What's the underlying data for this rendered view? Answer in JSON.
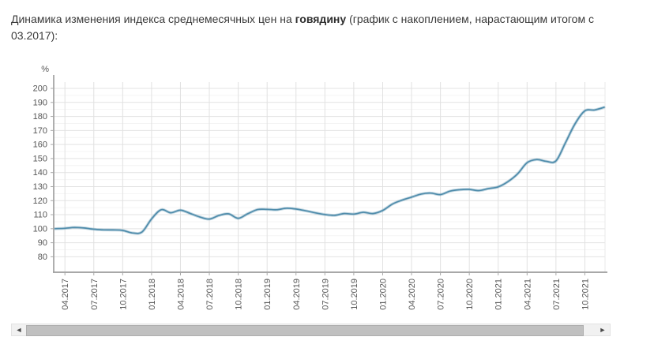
{
  "header": {
    "title_prefix": "Динамика изменения индекса среднемесячных цен на",
    "title_product": "говядину",
    "title_suffix": "(график с накоплением, нарастающим итогом с 03.2017):"
  },
  "chart_data": {
    "type": "line",
    "title": "Динамика изменения индекса среднемесячных цен на говядину (график с накоплением, нарастающим итогом с 03.2017)",
    "ylabel": "%",
    "unit_label": "%",
    "grid": "on",
    "legend": "none",
    "line_color": "#4f8cab",
    "ylim": [
      80,
      200
    ],
    "y_tick_step": 10,
    "x": [
      "03.2017",
      "04.2017",
      "05.2017",
      "06.2017",
      "07.2017",
      "08.2017",
      "09.2017",
      "10.2017",
      "11.2017",
      "12.2017",
      "01.2018",
      "02.2018",
      "03.2018",
      "04.2018",
      "05.2018",
      "06.2018",
      "07.2018",
      "08.2018",
      "09.2018",
      "10.2018",
      "11.2018",
      "12.2018",
      "01.2019",
      "02.2019",
      "03.2019",
      "04.2019",
      "05.2019",
      "06.2019",
      "07.2019",
      "08.2019",
      "09.2019",
      "10.2019",
      "11.2019",
      "12.2019",
      "01.2020",
      "02.2020",
      "03.2020",
      "04.2020",
      "05.2020",
      "06.2020",
      "07.2020",
      "08.2020",
      "09.2020",
      "10.2020",
      "11.2020",
      "12.2020",
      "01.2021",
      "02.2021",
      "03.2021",
      "04.2021",
      "05.2021",
      "06.2021",
      "07.2021",
      "08.2021",
      "09.2021",
      "10.2021",
      "11.2021",
      "12.2021"
    ],
    "values": [
      100.0,
      100.3,
      100.9,
      100.5,
      99.6,
      99.2,
      99.1,
      98.8,
      97.0,
      97.6,
      107.0,
      113.5,
      111.4,
      113.2,
      110.9,
      108.4,
      106.9,
      109.4,
      110.6,
      107.4,
      110.7,
      113.6,
      113.8,
      113.5,
      114.6,
      114.0,
      112.8,
      111.3,
      110.1,
      109.5,
      110.8,
      110.4,
      111.7,
      110.8,
      113.0,
      117.5,
      120.3,
      122.5,
      124.7,
      125.4,
      124.3,
      126.8,
      127.8,
      128.0,
      127.2,
      128.6,
      129.8,
      133.5,
      139.0,
      147.0,
      149.3,
      148.0,
      148.3,
      161.5,
      175.0,
      184.0,
      184.6,
      186.5
    ],
    "x_tick_labels": [
      "04.2017",
      "07.2017",
      "10.2017",
      "01.2018",
      "04.2018",
      "07.2018",
      "10.2018",
      "01.2019",
      "04.2019",
      "07.2019",
      "10.2019",
      "01.2020",
      "04.2020",
      "07.2020",
      "10.2020",
      "01.2021",
      "04.2021",
      "07.2021",
      "10.2021"
    ]
  },
  "scrollbar": {
    "left_arrow": "◄",
    "right_arrow": "►"
  }
}
